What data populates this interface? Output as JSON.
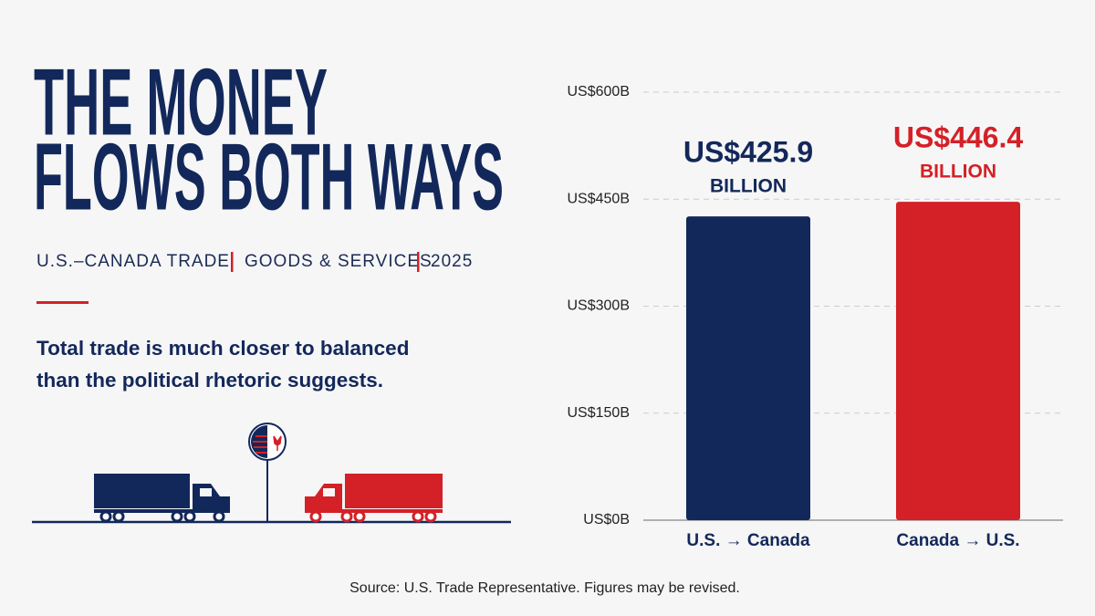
{
  "chart_data": {
    "type": "bar",
    "title": [
      "THE MONEY",
      "FLOWS BOTH WAYS"
    ],
    "subtitle": [
      "U.S.–CANADA TRADE",
      "GOODS & SERVICES",
      "2025"
    ],
    "description": "Total trade is much closer to balanced than the political rhetoric suggests.",
    "source": "Source: U.S. Trade Representative. Figures may be revised.",
    "categories": [
      "U.S. → Canada",
      "Canada → U.S."
    ],
    "values": [
      425.9,
      446.4
    ],
    "value_labels": [
      [
        "US$425.9",
        "BILLION"
      ],
      [
        "US$446.4",
        "BILLION"
      ]
    ],
    "colors": [
      "#13285a",
      "#d42027"
    ],
    "ylim": [
      0,
      600
    ],
    "yticks": [
      {
        "value": 0,
        "label": "US$0B"
      },
      {
        "value": 150,
        "label": "US$150B"
      },
      {
        "value": 300,
        "label": "US$300B"
      },
      {
        "value": 450,
        "label": "US$450B"
      },
      {
        "value": 600,
        "label": "US$600B"
      }
    ],
    "grid": true
  }
}
